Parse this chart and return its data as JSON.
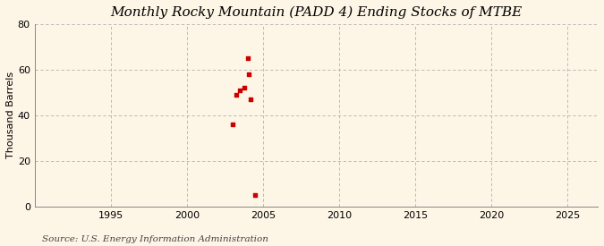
{
  "title": "Monthly Rocky Mountain (PADD 4) Ending Stocks of MTBE",
  "ylabel": "Thousand Barrels",
  "source": "Source: U.S. Energy Information Administration",
  "xlim": [
    1990,
    2027
  ],
  "ylim": [
    0,
    80
  ],
  "xticks": [
    1995,
    2000,
    2005,
    2010,
    2015,
    2020,
    2025
  ],
  "yticks": [
    0,
    20,
    40,
    60,
    80
  ],
  "background_color": "#fdf5e6",
  "plot_bg_color": "#fdf5e6",
  "grid_color": "#aaaaaa",
  "marker_color": "#cc0000",
  "x_data": [
    2003.0,
    2003.25,
    2003.5,
    2003.75,
    2004.0,
    2004.08,
    2004.17,
    2004.5
  ],
  "y_data": [
    36,
    49,
    51,
    52,
    65,
    58,
    47,
    5
  ],
  "title_fontsize": 11,
  "label_fontsize": 8,
  "tick_fontsize": 8,
  "source_fontsize": 7.5
}
